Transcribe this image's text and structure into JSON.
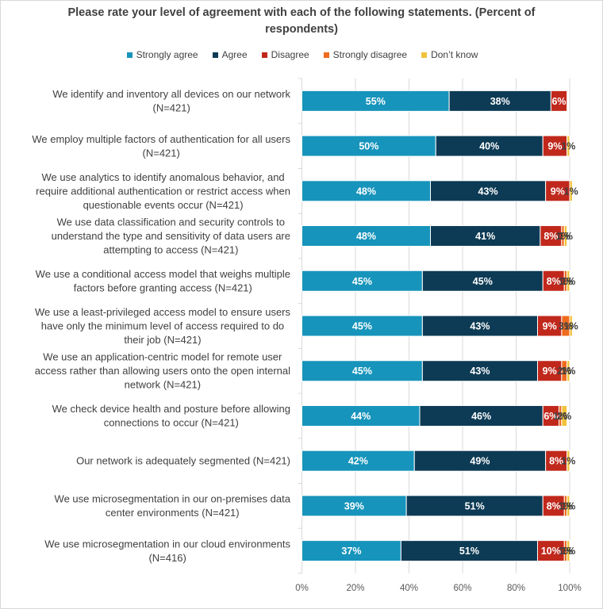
{
  "chart_data": {
    "type": "bar",
    "orientation": "horizontal",
    "stacked": true,
    "title": "Please rate your level of agreement with each of the following statements. (Percent of respondents)",
    "title_lines": [
      "Please rate your level of agreement with each of the following statements. (Percent of",
      "respondents)"
    ],
    "xlabel": "",
    "ylabel": "",
    "xlim": [
      0,
      100
    ],
    "x_ticks": [
      "0%",
      "20%",
      "40%",
      "60%",
      "80%",
      "100%"
    ],
    "x_tick_values": [
      0,
      20,
      40,
      60,
      80,
      100
    ],
    "grid": "vertical",
    "legend_position": "top",
    "categories": [
      [
        "We identify and inventory all devices on our network",
        "(N=421)"
      ],
      [
        "We employ multiple factors of authentication for all users",
        "(N=421)"
      ],
      [
        "We use analytics to identify anomalous behavior, and",
        "require additional authentication or restrict access when",
        "questionable events occur (N=421)"
      ],
      [
        "We use data classification and security controls to",
        "understand the type and sensitivity of data users are",
        "attempting to access (N=421)"
      ],
      [
        "We use a conditional access model that weighs multiple",
        "factors before granting access (N=421)"
      ],
      [
        "We use a least-privileged access model to ensure users",
        "have only the minimum level of access required to do",
        "their job (N=421)"
      ],
      [
        "We use an application-centric model for remote user",
        "access rather than allowing users onto the open internal",
        "network (N=421)"
      ],
      [
        "We check device health and posture before allowing",
        "connections to occur (N=421)"
      ],
      [
        "Our network is adequately segmented (N=421)"
      ],
      [
        "We use microsegmentation in our on-premises data",
        "center environments (N=421)"
      ],
      [
        "We use microsegmentation in our cloud environments",
        "(N=416)"
      ]
    ],
    "series": [
      {
        "name": "Strongly agree",
        "color": "#1794bb",
        "label_color": "#ffffff",
        "values": [
          55,
          50,
          48,
          48,
          45,
          45,
          45,
          44,
          42,
          39,
          37
        ]
      },
      {
        "name": "Agree",
        "color": "#0d3b55",
        "label_color": "#ffffff",
        "values": [
          38,
          40,
          43,
          41,
          45,
          43,
          43,
          46,
          49,
          51,
          51
        ]
      },
      {
        "name": "Disagree",
        "color": "#c1281c",
        "label_color": "#ffffff",
        "values": [
          6,
          9,
          9,
          8,
          8,
          9,
          9,
          6,
          8,
          8,
          10
        ]
      },
      {
        "name": "Strongly disagree",
        "color": "#ef6c1f",
        "label_color": "#404040",
        "values": [
          0,
          0,
          0,
          1,
          1,
          3,
          2,
          1,
          0,
          1,
          1
        ]
      },
      {
        "name": "Don’t know",
        "color": "#f0c23a",
        "label_color": "#404040",
        "values": [
          0,
          1,
          1,
          1,
          1,
          1,
          1,
          2,
          1,
          1,
          1
        ]
      }
    ],
    "value_suffix": "%"
  },
  "legend": {
    "items": [
      {
        "label": "Strongly agree",
        "color": "#1794bb"
      },
      {
        "label": "Agree",
        "color": "#0d3b55"
      },
      {
        "label": "Disagree",
        "color": "#c1281c"
      },
      {
        "label": "Strongly disagree",
        "color": "#ef6c1f"
      },
      {
        "label": "Don’t know",
        "color": "#f0c23a"
      }
    ]
  }
}
